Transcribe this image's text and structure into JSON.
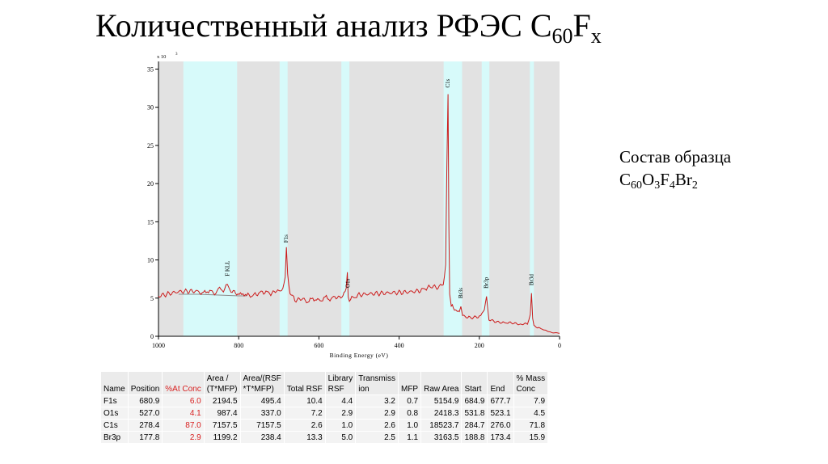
{
  "slide": {
    "title_main": "Количественный анализ РФЭС C",
    "title_sub": "60",
    "title_end": "F",
    "title_end_sub": "x",
    "composition_label": "Состав образца",
    "composition_formula": [
      {
        "t": "C",
        "s": "60"
      },
      {
        "t": "O",
        "s": "3"
      },
      {
        "t": "F",
        "s": "4"
      },
      {
        "t": "Br",
        "s": "2"
      }
    ]
  },
  "chart_data": {
    "type": "line",
    "title": "",
    "xlabel": "Binding Energy (eV)",
    "ylabel": "",
    "y_multiplier_label": "x 10",
    "y_multiplier_exp": "3",
    "xlim": [
      1000,
      0
    ],
    "ylim": [
      0,
      36
    ],
    "x_ticks": [
      1000,
      800,
      600,
      400,
      200,
      0
    ],
    "y_ticks": [
      0,
      5,
      10,
      15,
      20,
      25,
      30,
      35
    ],
    "grid": false,
    "line_color": "#cc1a1a",
    "background_color": "#e2e2e2",
    "band_color": "#d7fafa",
    "regions": [
      [
        938,
        804
      ],
      [
        698,
        678
      ],
      [
        544,
        524
      ],
      [
        289,
        243
      ],
      [
        194,
        175
      ],
      [
        74,
        64
      ]
    ],
    "peak_labels": [
      {
        "text": "F KLL",
        "x": 828
      },
      {
        "text": "F1s",
        "x": 681
      },
      {
        "text": "O1s",
        "x": 527
      },
      {
        "text": "C1s",
        "x": 278
      },
      {
        "text": "Br3s",
        "x": 246
      },
      {
        "text": "Br3p",
        "x": 182
      },
      {
        "text": "Br3d",
        "x": 70
      }
    ],
    "series": [
      {
        "x": [
          1000,
          950,
          900,
          860,
          835,
          828,
          822,
          805,
          780,
          750,
          720,
          700,
          690,
          684,
          681,
          678,
          672,
          660,
          640,
          600,
          560,
          540,
          532,
          529,
          527,
          524,
          518,
          500,
          450,
          400,
          350,
          320,
          300,
          290,
          284,
          281,
          278,
          276,
          274,
          270,
          262,
          255,
          250,
          246,
          242,
          235,
          220,
          200,
          190,
          185,
          182,
          179,
          176,
          170,
          150,
          120,
          100,
          80,
          73,
          70,
          67,
          64,
          55,
          40,
          20,
          0
        ],
        "y": [
          5.3,
          5.7,
          5.8,
          5.8,
          6.3,
          6.8,
          6.1,
          5.6,
          5.4,
          5.6,
          5.7,
          5.8,
          6.3,
          7.6,
          11.2,
          8.0,
          5.6,
          4.9,
          4.7,
          4.8,
          5.1,
          5.3,
          6.2,
          8.0,
          5.3,
          5.0,
          5.1,
          5.3,
          5.5,
          5.8,
          6.1,
          6.3,
          6.4,
          6.8,
          9.5,
          22.0,
          31.5,
          15.0,
          5.6,
          3.9,
          3.5,
          3.3,
          3.2,
          3.9,
          2.8,
          2.6,
          2.5,
          2.6,
          3.0,
          4.4,
          5.2,
          3.6,
          2.3,
          2.1,
          1.9,
          1.7,
          1.6,
          1.7,
          3.0,
          5.6,
          2.2,
          1.4,
          1.2,
          0.9,
          0.5,
          0.4
        ]
      }
    ],
    "baseline": {
      "x": [
        950,
        900,
        850,
        800,
        780
      ],
      "y": [
        5.5,
        5.5,
        5.4,
        5.3,
        5.3
      ]
    }
  },
  "table": {
    "headers": [
      "Name",
      "Position",
      "%At Conc",
      "Area /\n(T*MFP)",
      "Area/(RSF\n*T*MFP)",
      "Total RSF",
      "Library\nRSF",
      "Transmiss\nion",
      "MFP",
      "Raw Area",
      "Start",
      "End",
      "% Mass\nConc"
    ],
    "rows": [
      [
        "F1s",
        "680.9",
        "6.0",
        "2194.5",
        "495.4",
        "10.4",
        "4.4",
        "3.2",
        "0.7",
        "5154.9",
        "684.9",
        "677.7",
        "7.9"
      ],
      [
        "O1s",
        "527.0",
        "4.1",
        "987.4",
        "337.0",
        "7.2",
        "2.9",
        "2.9",
        "0.8",
        "2418.3",
        "531.8",
        "523.1",
        "4.5"
      ],
      [
        "C1s",
        "278.4",
        "87.0",
        "7157.5",
        "7157.5",
        "2.6",
        "1.0",
        "2.6",
        "1.0",
        "18523.7",
        "284.7",
        "276.0",
        "71.8"
      ],
      [
        "Br3p",
        "177.8",
        "2.9",
        "1199.2",
        "238.4",
        "13.3",
        "5.0",
        "2.5",
        "1.1",
        "3163.5",
        "188.8",
        "173.4",
        "15.9"
      ]
    ],
    "highlight_column": 2,
    "highlight_color": "#d82020"
  }
}
